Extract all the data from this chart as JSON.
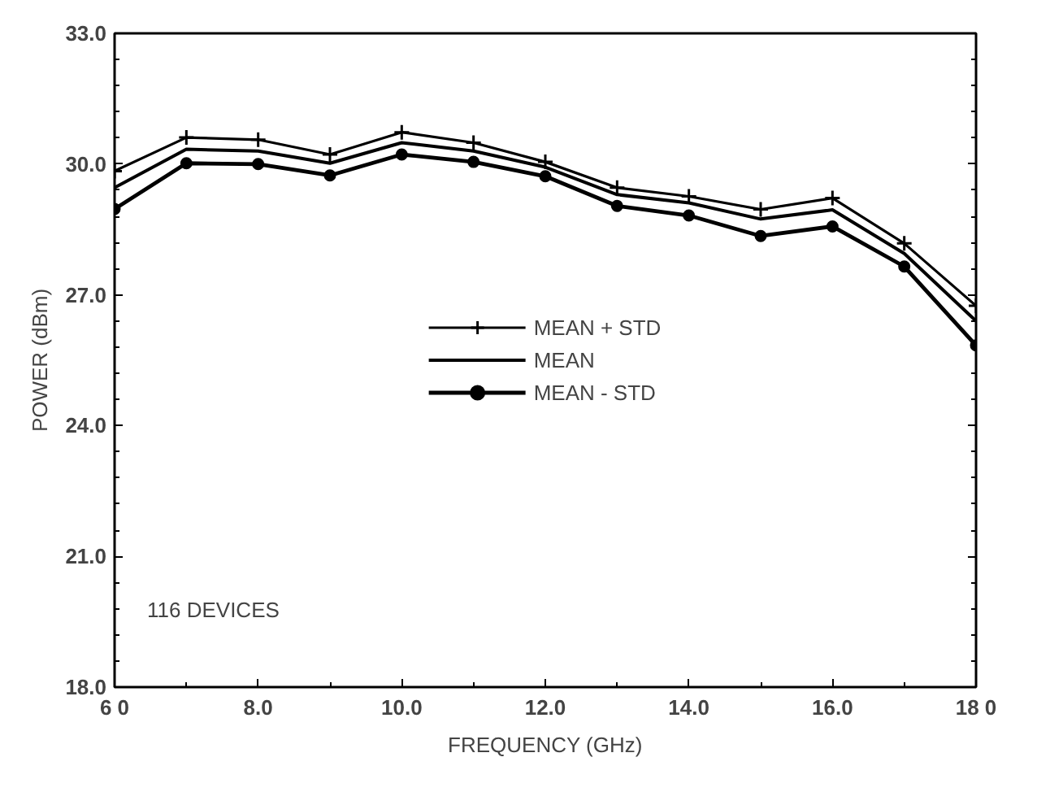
{
  "chart_data": {
    "type": "line",
    "xlabel": "FREQUENCY (GHz)",
    "ylabel": "POWER (dBm)",
    "x": [
      6,
      7,
      8,
      9,
      10,
      11,
      12,
      13,
      14,
      15,
      16,
      17,
      18
    ],
    "series": [
      {
        "name": "MEAN + STD",
        "color": "#000000",
        "marker": "cross",
        "values": [
          29.84,
          30.61,
          30.56,
          30.22,
          30.73,
          30.49,
          30.05,
          29.46,
          29.26,
          28.96,
          29.22,
          28.18,
          26.75
        ]
      },
      {
        "name": "MEAN",
        "color": "#000000",
        "marker": "none",
        "values": [
          29.46,
          30.34,
          30.3,
          30.02,
          30.49,
          30.3,
          29.93,
          29.3,
          29.11,
          28.74,
          28.95,
          27.95,
          26.4
        ]
      },
      {
        "name": "MEAN - STD",
        "color": "#000000",
        "marker": "circle",
        "values": [
          28.97,
          30.02,
          30.0,
          29.74,
          30.22,
          30.05,
          29.72,
          29.04,
          28.82,
          28.35,
          28.57,
          27.65,
          25.84
        ]
      }
    ],
    "xlim": [
      6,
      18
    ],
    "ylim": [
      18,
      33
    ],
    "xticks": [
      {
        "value": 6,
        "label": "6 0"
      },
      {
        "value": 8,
        "label": "8.0"
      },
      {
        "value": 10,
        "label": "10.0"
      },
      {
        "value": 12,
        "label": "12.0"
      },
      {
        "value": 14,
        "label": "14.0"
      },
      {
        "value": 16,
        "label": "16.0"
      },
      {
        "value": 18,
        "label": "18 0"
      }
    ],
    "yticks": [
      {
        "value": 18,
        "label": "18.0"
      },
      {
        "value": 21,
        "label": "21.0"
      },
      {
        "value": 24,
        "label": "24.0"
      },
      {
        "value": 27,
        "label": "27.0"
      },
      {
        "value": 30,
        "label": "30.0"
      },
      {
        "value": 33,
        "label": "33.0"
      }
    ],
    "annotations": [
      "116 DEVICES"
    ],
    "legend": "center",
    "grid": false,
    "line_style": "solid"
  }
}
